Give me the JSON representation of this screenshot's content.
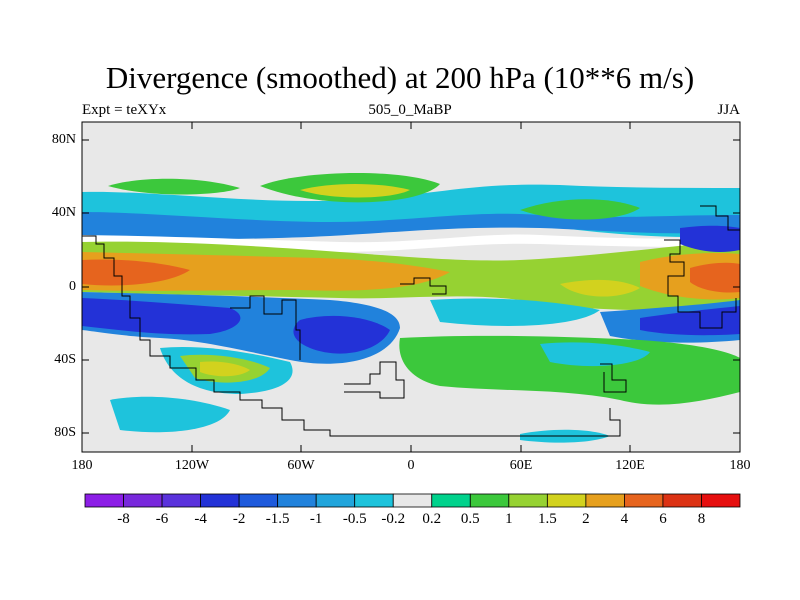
{
  "title": "Divergence (smoothed) at 200 hPa (10**6 m/s)",
  "subtitle_left": "Expt = teXYx",
  "subtitle_center": "505_0_MaBP",
  "subtitle_right": "JJA",
  "y_ticks": [
    "80N",
    "40N",
    "0",
    "40S",
    "80S"
  ],
  "x_ticks": [
    "180",
    "120W",
    "60W",
    "0",
    "60E",
    "120E",
    "180"
  ],
  "colorbar": {
    "labels": [
      "-8",
      "-6",
      "-4",
      "-2",
      "-1.5",
      "-1",
      "-0.5",
      "-0.2",
      "0.2",
      "0.5",
      "1",
      "1.5",
      "2",
      "4",
      "6",
      "8"
    ],
    "colors": [
      "#8c1ee6",
      "#7828dc",
      "#5a32dc",
      "#2332d7",
      "#1e5adc",
      "#2182dc",
      "#21a5dc",
      "#1ec3dc",
      "#e8e8e8",
      "#00d28c",
      "#3cc83c",
      "#96d232",
      "#d2d21e",
      "#e6a01e",
      "#e6641e",
      "#dc3214",
      "#e60f0f"
    ]
  },
  "chart_data": {
    "type": "heatmap",
    "title": "Divergence (smoothed) at 200 hPa (10**6 m/s)",
    "variable": "Divergence (smoothed)",
    "level": "200 hPa",
    "units": "10**6 m/s",
    "experiment": "Expt = teXYx",
    "run": "505_0_MaBP",
    "season": "JJA",
    "x_range": [
      -180,
      180
    ],
    "y_range": [
      -90,
      90
    ],
    "xticks": [
      "180",
      "120W",
      "60W",
      "0",
      "60E",
      "120E",
      "180"
    ],
    "yticks": [
      "80N",
      "40N",
      "0",
      "40S",
      "80S"
    ],
    "contour_levels": [
      -8,
      -6,
      -4,
      -2,
      -1.5,
      -1,
      -0.5,
      -0.2,
      0.2,
      0.5,
      1,
      1.5,
      2,
      4,
      6,
      8
    ],
    "features": [
      {
        "desc": "tropical divergence maximum",
        "lon_range": [
          -180,
          -20
        ],
        "lat_range": [
          -5,
          15
        ],
        "value": 4
      },
      {
        "desc": "tropical divergence maximum",
        "lon_range": [
          130,
          180
        ],
        "lat_range": [
          -5,
          15
        ],
        "value": 4
      },
      {
        "desc": "tropical convergence band",
        "lon_range": [
          -180,
          30
        ],
        "lat_range": [
          -35,
          -10
        ],
        "value": -2
      },
      {
        "desc": "tropical convergence band",
        "lon_range": [
          110,
          180
        ],
        "lat_range": [
          -35,
          -5
        ],
        "value": -2
      },
      {
        "desc": "northern midlatitude convergence",
        "lon_range": [
          90,
          180
        ],
        "lat_range": [
          20,
          35
        ],
        "value": -2
      },
      {
        "desc": "southern midlatitude divergence",
        "lon_range": [
          -155,
          -95
        ],
        "lat_range": [
          -55,
          -35
        ],
        "value": 1.5
      }
    ]
  }
}
